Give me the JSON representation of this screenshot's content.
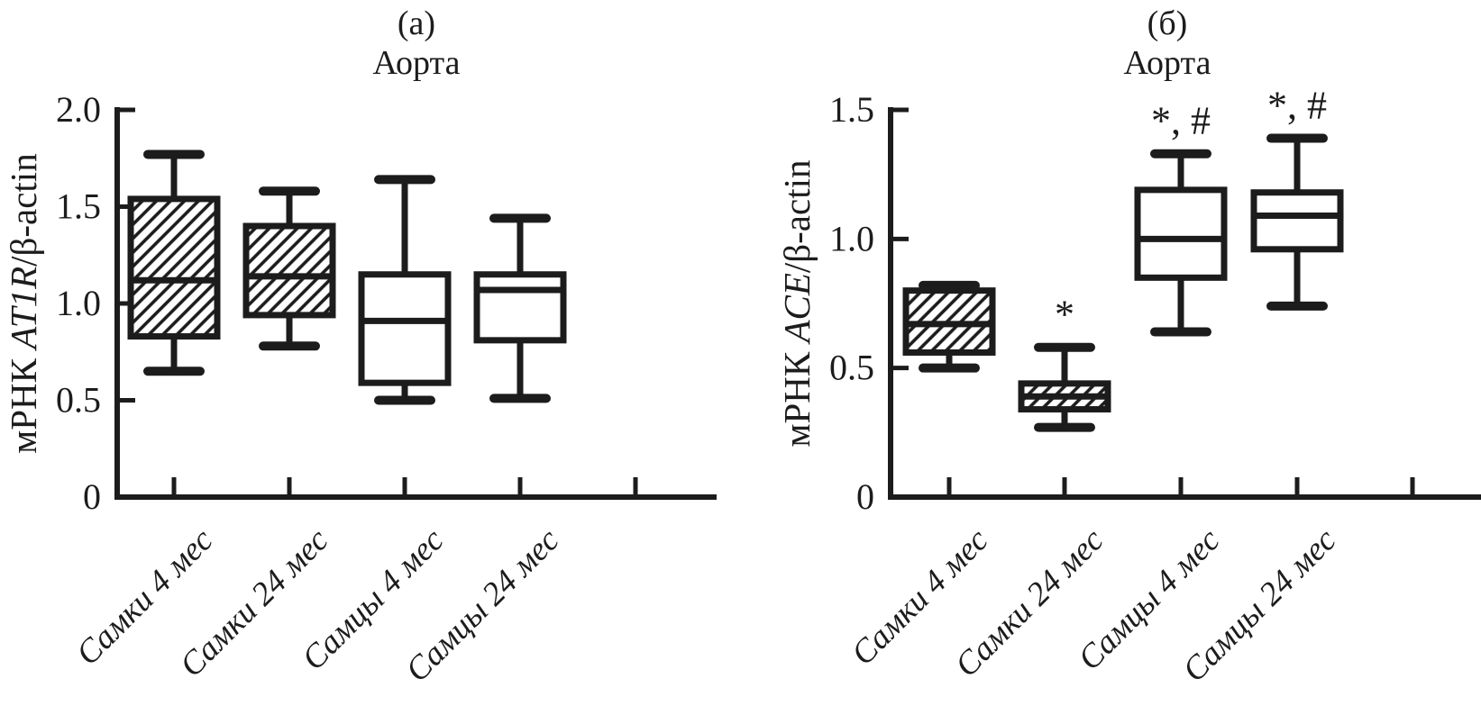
{
  "figure": {
    "background": "#ffffff",
    "ink": "#1c1c1c"
  },
  "chart_data": [
    {
      "type": "boxplot",
      "panel_label": "(а)",
      "title": "Аорта",
      "ylabel": "мРНК AT1R/β-actin",
      "ylabel_parts": {
        "prefix": "мРНК ",
        "gene_italic": "AT1R",
        "suffix": "/β-actin"
      },
      "ylim": [
        0,
        2.0
      ],
      "yticks": [
        0,
        0.5,
        1.0,
        1.5,
        2.0
      ],
      "ytick_labels": [
        "0",
        "0.5",
        "1.0",
        "1.5",
        "2.0"
      ],
      "categories": [
        "Самки 4 мес",
        "Самки 24 мес",
        "Самцы 4 мес",
        "Самцы 24 мес"
      ],
      "legend_position": "none",
      "grid": false,
      "boxes": [
        {
          "category": "Самки 4 мес",
          "hatched": true,
          "whisker_low": 0.65,
          "q1": 0.83,
          "median": 1.12,
          "q3": 1.54,
          "whisker_high": 1.77,
          "annotation": ""
        },
        {
          "category": "Самки 24 мес",
          "hatched": true,
          "whisker_low": 0.78,
          "q1": 0.94,
          "median": 1.14,
          "q3": 1.4,
          "whisker_high": 1.58,
          "annotation": ""
        },
        {
          "category": "Самцы 4 мес",
          "hatched": false,
          "whisker_low": 0.5,
          "q1": 0.59,
          "median": 0.91,
          "q3": 1.15,
          "whisker_high": 1.64,
          "annotation": ""
        },
        {
          "category": "Самцы 24 мес",
          "hatched": false,
          "whisker_low": 0.51,
          "q1": 0.81,
          "median": 1.07,
          "q3": 1.15,
          "whisker_high": 1.44,
          "annotation": ""
        }
      ]
    },
    {
      "type": "boxplot",
      "panel_label": "(б)",
      "title": "Аорта",
      "ylabel": "мРНК ACE/β-actin",
      "ylabel_parts": {
        "prefix": "мРНК ",
        "gene_italic": "ACE",
        "suffix": "/β-actin"
      },
      "ylim": [
        0,
        1.5
      ],
      "yticks": [
        0,
        0.5,
        1.0,
        1.5
      ],
      "ytick_labels": [
        "0",
        "0.5",
        "1.0",
        "1.5"
      ],
      "categories": [
        "Самки 4 мес",
        "Самки 24 мес",
        "Самцы 4 мес",
        "Самцы 24 мес"
      ],
      "legend_position": "none",
      "grid": false,
      "boxes": [
        {
          "category": "Самки 4 мес",
          "hatched": true,
          "whisker_low": 0.5,
          "q1": 0.56,
          "median": 0.67,
          "q3": 0.8,
          "whisker_high": 0.82,
          "annotation": ""
        },
        {
          "category": "Самки 24 мес",
          "hatched": true,
          "whisker_low": 0.27,
          "q1": 0.34,
          "median": 0.39,
          "q3": 0.44,
          "whisker_high": 0.58,
          "annotation": "*"
        },
        {
          "category": "Самцы 4 мес",
          "hatched": false,
          "whisker_low": 0.64,
          "q1": 0.85,
          "median": 1.0,
          "q3": 1.19,
          "whisker_high": 1.33,
          "annotation": "*, #"
        },
        {
          "category": "Самцы 24 мес",
          "hatched": false,
          "whisker_low": 0.74,
          "q1": 0.96,
          "median": 1.09,
          "q3": 1.18,
          "whisker_high": 1.39,
          "annotation": "*, #"
        }
      ]
    }
  ]
}
